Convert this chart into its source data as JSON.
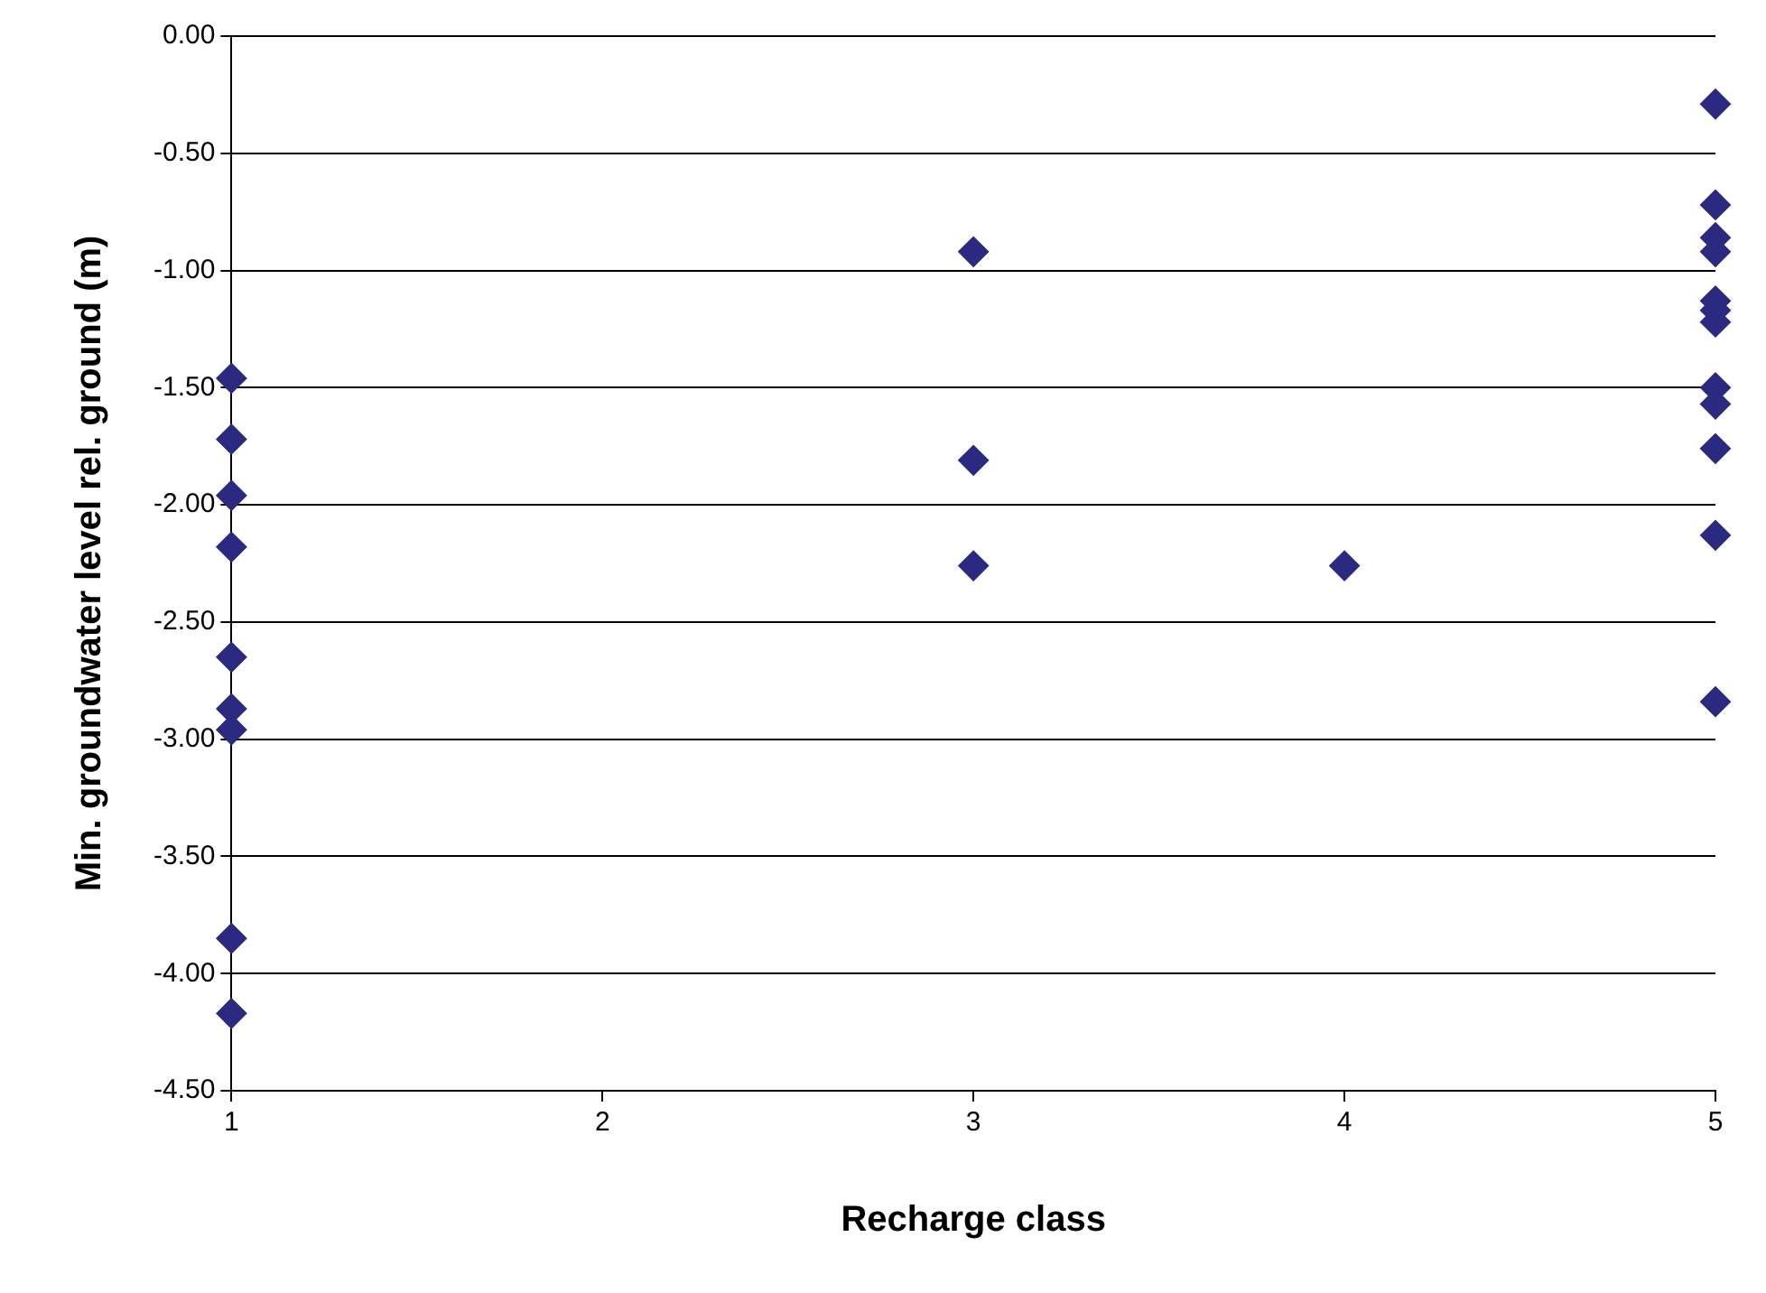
{
  "chart_data": {
    "type": "scatter",
    "xlabel": "Recharge class",
    "ylabel": "Min. groundwater level rel. ground (m)",
    "x": [
      1,
      1,
      1,
      1,
      1,
      1,
      1,
      1,
      1,
      3,
      3,
      3,
      4,
      5,
      5,
      5,
      5,
      5,
      5,
      5,
      5,
      5,
      5,
      5,
      5
    ],
    "values": [
      -1.46,
      -1.72,
      -1.96,
      -2.18,
      -2.65,
      -2.87,
      -2.96,
      -3.85,
      -4.17,
      -0.92,
      -1.81,
      -2.26,
      -2.26,
      -0.29,
      -0.72,
      -0.86,
      -0.92,
      -1.13,
      -1.17,
      -1.22,
      -1.5,
      -1.57,
      -1.76,
      -2.13,
      -2.84
    ],
    "color": "#2b2a80",
    "marker": "diamond",
    "grid": "y",
    "legend": false,
    "xlim": [
      1,
      5
    ],
    "xticks": [
      1,
      2,
      3,
      4,
      5
    ],
    "ylim": [
      -4.5,
      0
    ],
    "yticks": [
      {
        "value": -4.5,
        "label": "-4.50"
      },
      {
        "value": -4,
        "label": "-4.00"
      },
      {
        "value": -3.5,
        "label": "-3.50"
      },
      {
        "value": -3,
        "label": "-3.00"
      },
      {
        "value": -2.5,
        "label": "-2.50"
      },
      {
        "value": -2,
        "label": "-2.00"
      },
      {
        "value": -1.5,
        "label": "-1.50"
      },
      {
        "value": -1,
        "label": "-1.00"
      },
      {
        "value": -0.5,
        "label": "-0.50"
      },
      {
        "value": 0,
        "label": "0.00"
      }
    ]
  }
}
